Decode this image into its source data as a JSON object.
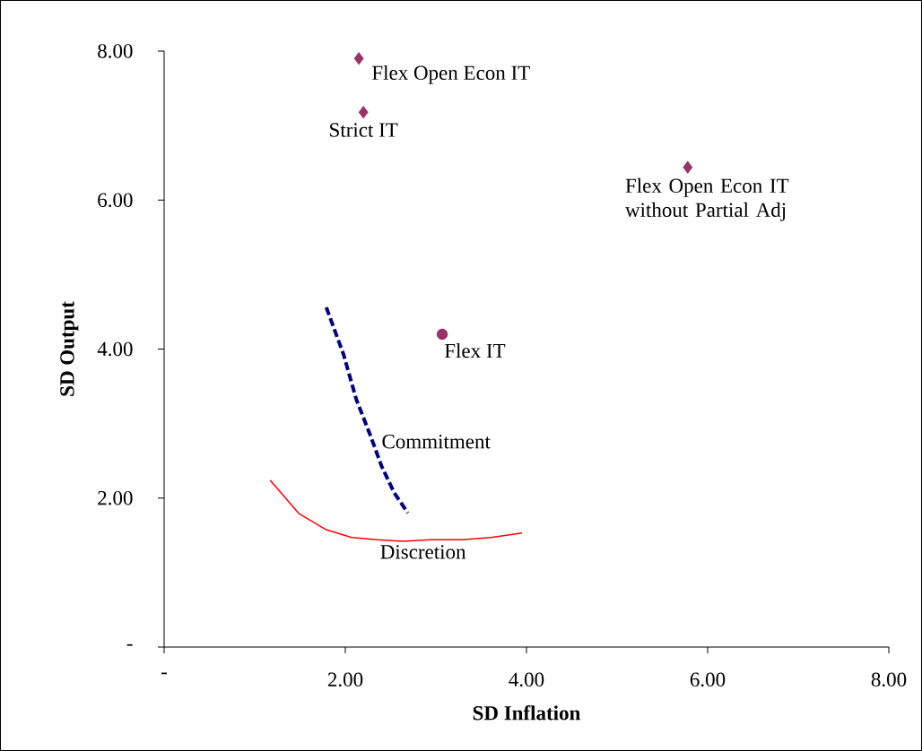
{
  "chart_data": {
    "type": "scatter",
    "xlabel": "SD Inflation",
    "ylabel": "SD Output",
    "marker": "diamond",
    "xlim": [
      0,
      8
    ],
    "ylim": [
      0,
      8
    ],
    "xticks": [
      {
        "value": 0,
        "label": "-"
      },
      {
        "value": 2,
        "label": "2.00"
      },
      {
        "value": 4,
        "label": "4.00"
      },
      {
        "value": 6,
        "label": "6.00"
      },
      {
        "value": 8,
        "label": "8.00"
      }
    ],
    "yticks": [
      {
        "value": 0,
        "label": "-"
      },
      {
        "value": 2,
        "label": "2.00"
      },
      {
        "value": 4,
        "label": "4.00"
      },
      {
        "value": 6,
        "label": "6.00"
      },
      {
        "value": 8,
        "label": "8.00"
      }
    ],
    "series": [
      {
        "name": "Flex Open Econ IT",
        "color": "#993366",
        "x": [
          2.15
        ],
        "values": [
          7.9
        ]
      },
      {
        "name": "Strict IT",
        "color": "#993366",
        "x": [
          2.2
        ],
        "values": [
          7.18
        ]
      },
      {
        "name": "Flex Open Econ IT without Partial Adj",
        "color": "#993366",
        "x": [
          5.78
        ],
        "values": [
          6.44
        ]
      },
      {
        "name": "Flex IT",
        "color": "#993366",
        "marker": "circle",
        "x": [
          3.07
        ],
        "values": [
          4.2
        ]
      },
      {
        "name": "Commitment",
        "type": "line",
        "marker": "none",
        "line_style": "dashed",
        "color": "#000080",
        "x": [
          1.79,
          1.98,
          2.12,
          2.28,
          2.4,
          2.54,
          2.69
        ],
        "values": [
          4.56,
          3.93,
          3.33,
          2.83,
          2.43,
          2.07,
          1.8
        ]
      },
      {
        "name": "Discretion",
        "type": "line",
        "marker": "none",
        "line_style": "solid",
        "color": "#ff0000",
        "x": [
          1.17,
          1.49,
          1.78,
          2.07,
          2.35,
          2.64,
          2.94,
          3.29,
          3.61,
          3.95
        ],
        "values": [
          2.24,
          1.79,
          1.58,
          1.47,
          1.44,
          1.42,
          1.44,
          1.44,
          1.47,
          1.53
        ]
      }
    ]
  }
}
